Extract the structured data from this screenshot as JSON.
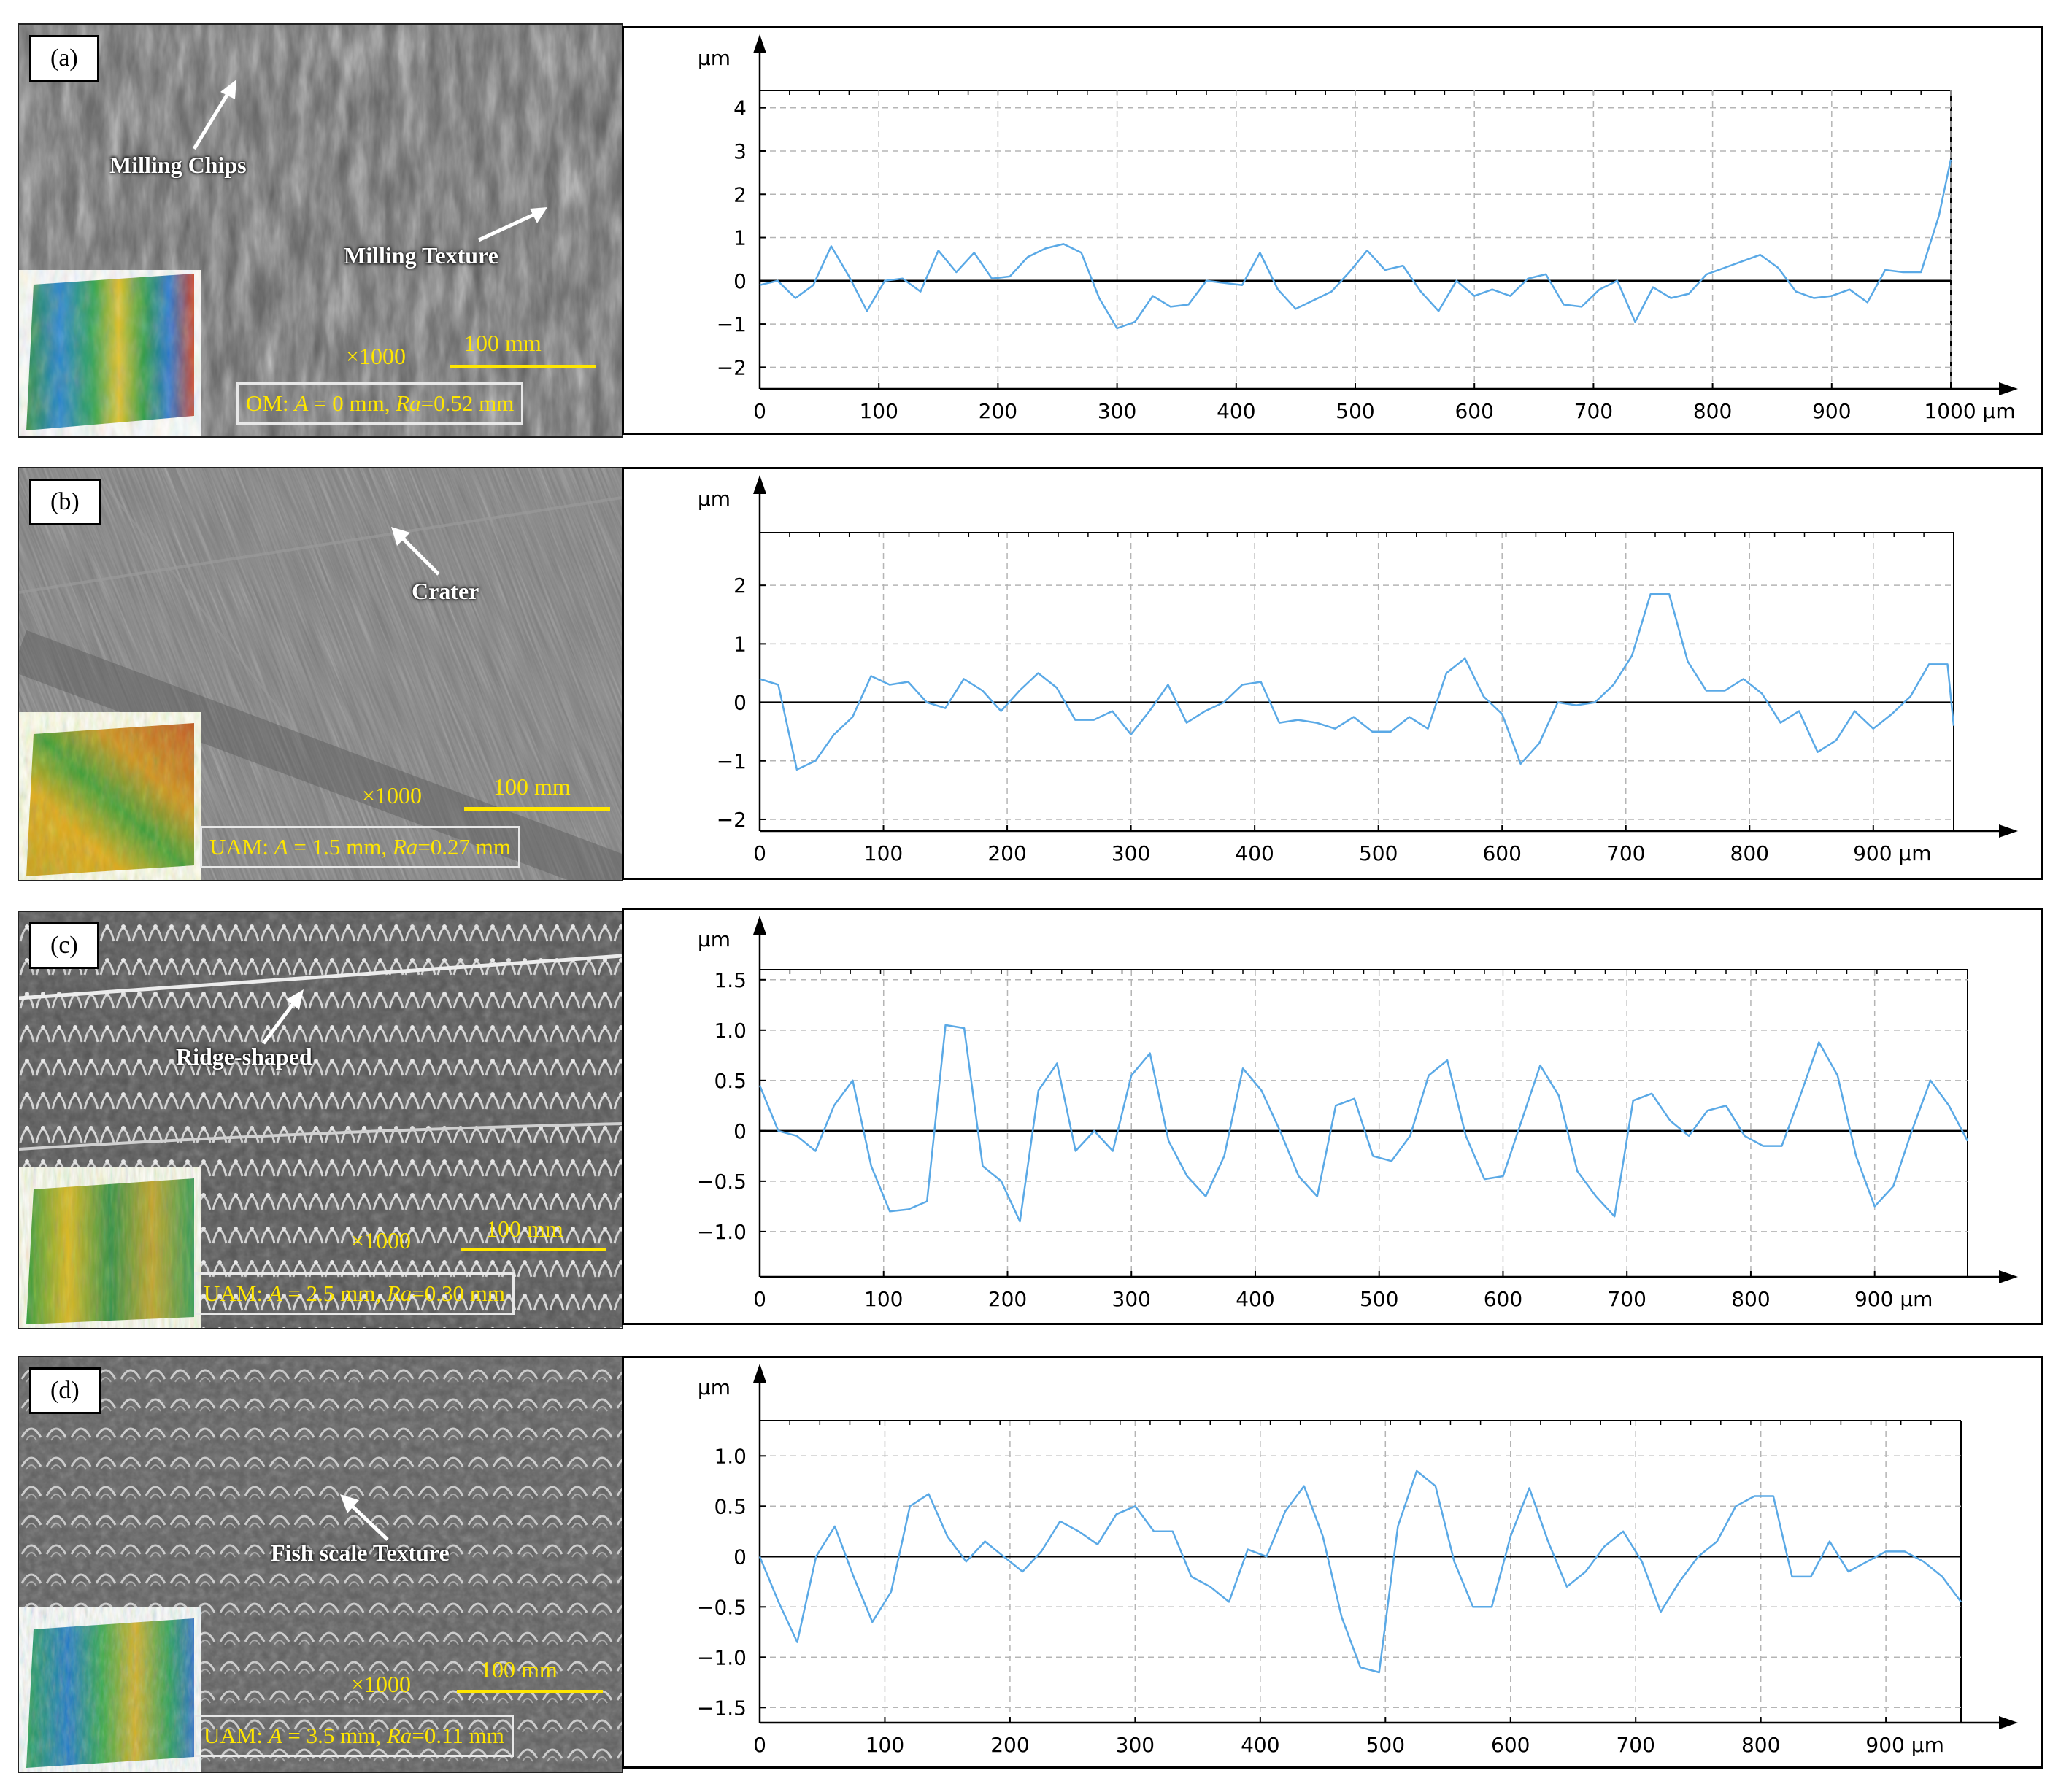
{
  "panels": [
    {
      "label": "(a)",
      "annotations": [
        "Milling Chips",
        "Milling Texture"
      ],
      "magnification": "×1000",
      "scale_bar": "100 mm",
      "params": {
        "method": "OM",
        "A": "0 mm",
        "Ra": "0.52 mm"
      },
      "colors": {
        "surface": "#6a6a6a"
      }
    },
    {
      "label": "(b)",
      "annotations": [
        "Crater"
      ],
      "magnification": "×1000",
      "scale_bar": "100 mm",
      "params": {
        "method": "UAM",
        "A": "1.5 mm",
        "Ra": "0.27 mm"
      },
      "colors": {
        "surface": "#7a7a7a"
      }
    },
    {
      "label": "(c)",
      "annotations": [
        "Ridge-shaped"
      ],
      "magnification": "×1000",
      "scale_bar": "100 mm",
      "params": {
        "method": "UAM",
        "A": "2.5 mm",
        "Ra": "0.30 mm"
      },
      "colors": {
        "surface": "#707070"
      }
    },
    {
      "label": "(d)",
      "annotations": [
        "Fish scale Texture"
      ],
      "magnification": "×1000",
      "scale_bar": "100 mm",
      "params": {
        "method": "UAM",
        "A": "3.5 mm",
        "Ra": "0.11 mm"
      },
      "colors": {
        "surface": "#6e6e6e"
      }
    }
  ],
  "chart_data": [
    {
      "type": "line",
      "ylabel": "µm",
      "xunit": "µm",
      "xlim": [
        0,
        1000
      ],
      "ylim": [
        -2.5,
        4.4
      ],
      "xticks": [
        0,
        100,
        200,
        300,
        400,
        500,
        600,
        700,
        800,
        900,
        1000
      ],
      "yticks": [
        -2,
        -1,
        0,
        1,
        2,
        3,
        4
      ],
      "grid": true,
      "x": [
        0,
        15,
        30,
        45,
        60,
        75,
        90,
        105,
        120,
        135,
        150,
        165,
        180,
        195,
        210,
        225,
        240,
        255,
        270,
        285,
        300,
        315,
        330,
        345,
        360,
        375,
        390,
        405,
        420,
        435,
        450,
        465,
        480,
        495,
        510,
        525,
        540,
        555,
        570,
        585,
        600,
        615,
        630,
        645,
        660,
        675,
        690,
        705,
        720,
        735,
        750,
        765,
        780,
        795,
        810,
        825,
        840,
        855,
        870,
        885,
        900,
        915,
        930,
        945,
        960,
        975,
        990,
        1000
      ],
      "y": [
        -0.1,
        0,
        -0.4,
        -0.1,
        0.8,
        0.1,
        -0.7,
        0,
        0.05,
        -0.25,
        0.7,
        0.2,
        0.65,
        0.05,
        0.1,
        0.55,
        0.75,
        0.85,
        0.65,
        -0.4,
        -1.1,
        -0.95,
        -0.35,
        -0.6,
        -0.55,
        0,
        -0.05,
        -0.1,
        0.65,
        -0.2,
        -0.65,
        -0.45,
        -0.25,
        0.2,
        0.7,
        0.25,
        0.35,
        -0.25,
        -0.7,
        0,
        -0.35,
        -0.2,
        -0.35,
        0.05,
        0.15,
        -0.55,
        -0.6,
        -0.2,
        0,
        -0.95,
        -0.15,
        -0.4,
        -0.3,
        0.15,
        0.3,
        0.45,
        0.6,
        0.3,
        -0.25,
        -0.4,
        -0.35,
        -0.2,
        -0.5,
        0.25,
        0.2,
        0.2,
        1.5,
        2.8
      ]
    },
    {
      "type": "line",
      "ylabel": "µm",
      "xunit": "µm",
      "xlim": [
        0,
        965
      ],
      "ylim": [
        -2.2,
        2.9
      ],
      "xticks": [
        0,
        100,
        200,
        300,
        400,
        500,
        600,
        700,
        800,
        900
      ],
      "yticks": [
        -2,
        -1,
        0,
        1,
        2
      ],
      "grid": true,
      "x": [
        0,
        15,
        30,
        45,
        60,
        75,
        90,
        105,
        120,
        135,
        150,
        165,
        180,
        195,
        210,
        225,
        240,
        255,
        270,
        285,
        300,
        315,
        330,
        345,
        360,
        375,
        390,
        405,
        420,
        435,
        450,
        465,
        480,
        495,
        510,
        525,
        540,
        555,
        570,
        585,
        600,
        615,
        630,
        645,
        660,
        675,
        690,
        705,
        720,
        735,
        750,
        765,
        780,
        795,
        810,
        825,
        840,
        855,
        870,
        885,
        900,
        915,
        930,
        945,
        960,
        965
      ],
      "y": [
        0.4,
        0.3,
        -1.15,
        -1.0,
        -0.55,
        -0.25,
        0.45,
        0.3,
        0.35,
        0.0,
        -0.1,
        0.4,
        0.2,
        -0.15,
        0.2,
        0.5,
        0.25,
        -0.3,
        -0.3,
        -0.15,
        -0.55,
        -0.15,
        0.3,
        -0.35,
        -0.15,
        0.0,
        0.3,
        0.35,
        -0.35,
        -0.3,
        -0.35,
        -0.45,
        -0.25,
        -0.5,
        -0.5,
        -0.25,
        -0.45,
        0.5,
        0.75,
        0.1,
        -0.2,
        -1.05,
        -0.7,
        0.0,
        -0.05,
        0.0,
        0.3,
        0.8,
        1.85,
        1.85,
        0.7,
        0.2,
        0.2,
        0.4,
        0.15,
        -0.35,
        -0.15,
        -0.85,
        -0.65,
        -0.15,
        -0.45,
        -0.2,
        0.1,
        0.65,
        0.65,
        -0.4
      ]
    },
    {
      "type": "line",
      "ylabel": "µm",
      "xunit": "µm",
      "xlim": [
        0,
        975
      ],
      "ylim": [
        -1.45,
        1.6
      ],
      "xticks": [
        0,
        100,
        200,
        300,
        400,
        500,
        600,
        700,
        800,
        900
      ],
      "yticks": [
        -1.0,
        -0.5,
        0,
        0.5,
        1.0,
        1.5
      ],
      "ytick_labels": [
        "−1.0",
        "−0.5",
        "0",
        "0.5",
        "1.0",
        "1.5"
      ],
      "grid": true,
      "x": [
        0,
        15,
        30,
        45,
        60,
        75,
        90,
        105,
        120,
        135,
        150,
        165,
        180,
        195,
        210,
        225,
        240,
        255,
        270,
        285,
        300,
        315,
        330,
        345,
        360,
        375,
        390,
        405,
        420,
        435,
        450,
        465,
        480,
        495,
        510,
        525,
        540,
        555,
        570,
        585,
        600,
        615,
        630,
        645,
        660,
        675,
        690,
        705,
        720,
        735,
        750,
        765,
        780,
        795,
        810,
        825,
        840,
        855,
        870,
        885,
        900,
        915,
        930,
        945,
        960,
        975
      ],
      "y": [
        0.45,
        0.0,
        -0.05,
        -0.2,
        0.25,
        0.5,
        -0.35,
        -0.8,
        -0.78,
        -0.7,
        1.05,
        1.02,
        -0.35,
        -0.5,
        -0.9,
        0.4,
        0.67,
        -0.2,
        0.0,
        -0.2,
        0.55,
        0.77,
        -0.1,
        -0.45,
        -0.65,
        -0.25,
        0.62,
        0.4,
        0.0,
        -0.45,
        -0.65,
        0.25,
        0.32,
        -0.25,
        -0.3,
        -0.05,
        0.55,
        0.7,
        -0.05,
        -0.48,
        -0.45,
        0.1,
        0.65,
        0.35,
        -0.4,
        -0.65,
        -0.85,
        0.3,
        0.37,
        0.1,
        -0.05,
        0.2,
        0.25,
        -0.05,
        -0.15,
        -0.15,
        0.35,
        0.88,
        0.55,
        -0.25,
        -0.75,
        -0.55,
        0.0,
        0.5,
        0.25,
        -0.1
      ]
    },
    {
      "type": "line",
      "ylabel": "µm",
      "xunit": "µm",
      "xlim": [
        0,
        960
      ],
      "ylim": [
        -1.65,
        1.35
      ],
      "xticks": [
        0,
        100,
        200,
        300,
        400,
        500,
        600,
        700,
        800,
        900
      ],
      "yticks": [
        -1.5,
        -1.0,
        -0.5,
        0,
        0.5,
        1.0
      ],
      "ytick_labels": [
        "−1.5",
        "−1.0",
        "−0.5",
        "0",
        "0.5",
        "1.0"
      ],
      "grid": true,
      "x": [
        0,
        15,
        30,
        45,
        60,
        75,
        90,
        105,
        120,
        135,
        150,
        165,
        180,
        195,
        210,
        225,
        240,
        255,
        270,
        285,
        300,
        315,
        330,
        345,
        360,
        375,
        390,
        405,
        420,
        435,
        450,
        465,
        480,
        495,
        510,
        525,
        540,
        555,
        570,
        585,
        600,
        615,
        630,
        645,
        660,
        675,
        690,
        705,
        720,
        735,
        750,
        765,
        780,
        795,
        810,
        825,
        840,
        855,
        870,
        885,
        900,
        915,
        930,
        945,
        960
      ],
      "y": [
        0.0,
        -0.45,
        -0.85,
        0.0,
        0.3,
        -0.2,
        -0.65,
        -0.35,
        0.5,
        0.62,
        0.2,
        -0.05,
        0.15,
        0.0,
        -0.15,
        0.05,
        0.35,
        0.25,
        0.12,
        0.42,
        0.5,
        0.25,
        0.25,
        -0.2,
        -0.3,
        -0.45,
        0.07,
        0.0,
        0.45,
        0.7,
        0.2,
        -0.6,
        -1.1,
        -1.15,
        0.3,
        0.85,
        0.7,
        -0.05,
        -0.5,
        -0.5,
        0.2,
        0.68,
        0.15,
        -0.3,
        -0.15,
        0.1,
        0.25,
        -0.05,
        -0.55,
        -0.25,
        0.0,
        0.15,
        0.5,
        0.6,
        0.6,
        -0.2,
        -0.2,
        0.15,
        -0.15,
        -0.05,
        0.05,
        0.05,
        -0.05,
        -0.2,
        -0.45
      ]
    }
  ],
  "colors": {
    "line": "#5aa9e6",
    "zero_line": "#000000",
    "grid": "#b5b5b5"
  }
}
